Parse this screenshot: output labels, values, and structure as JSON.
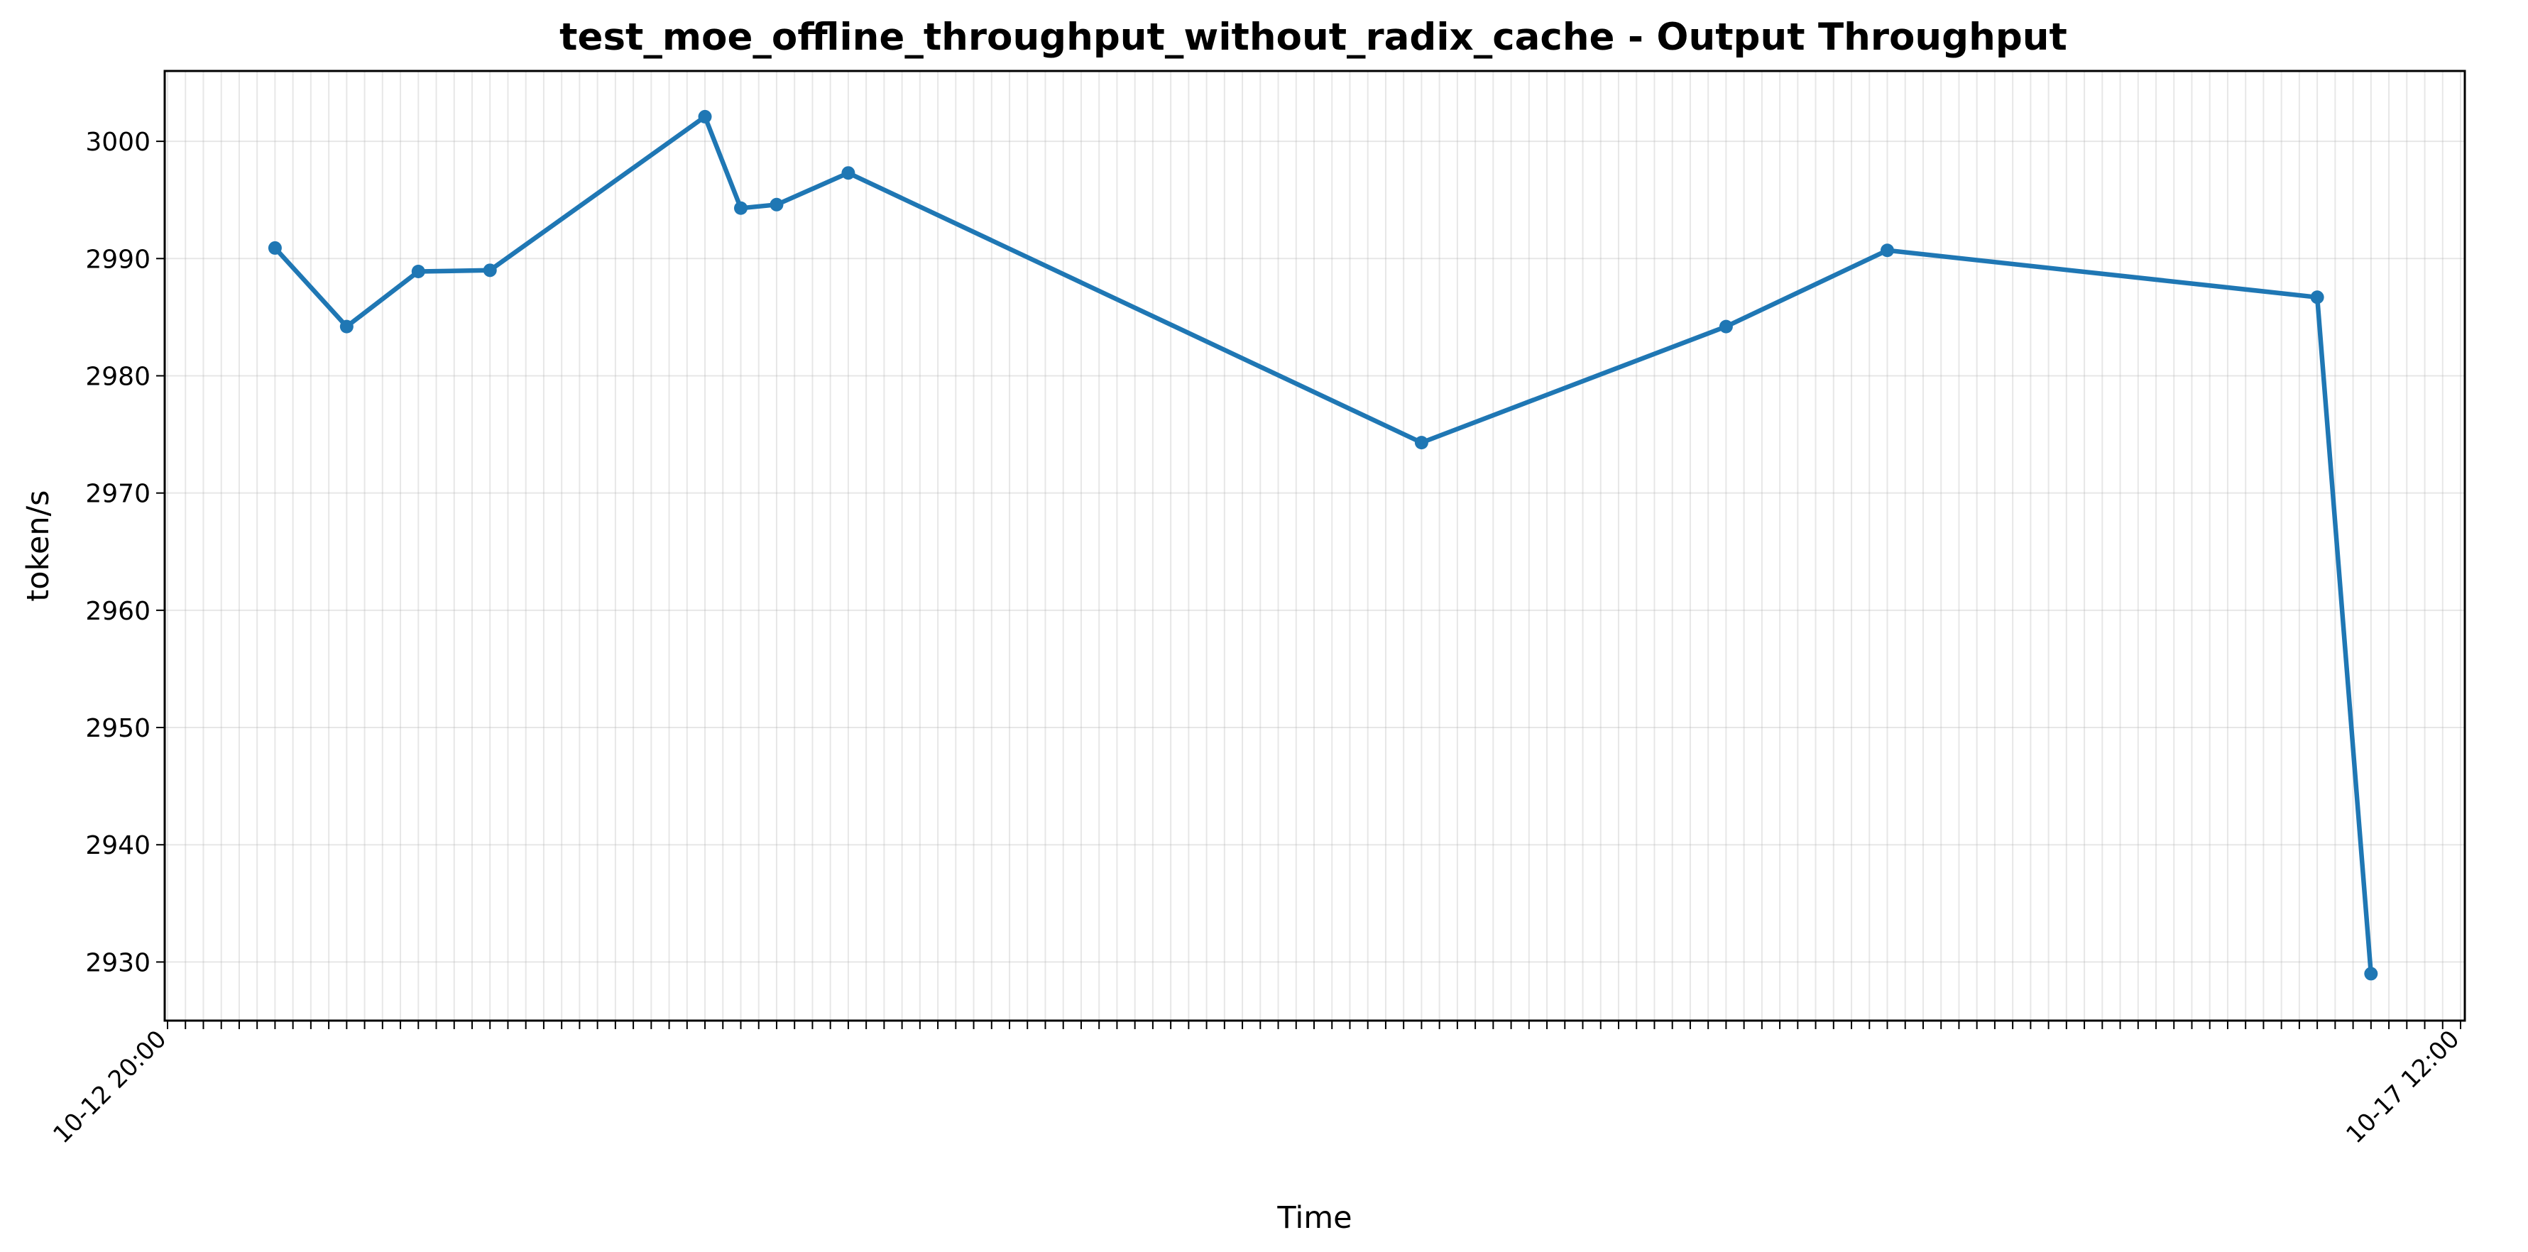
{
  "chart_data": {
    "type": "line",
    "title": "test_moe_offline_throughput_without_radix_cache - Output Throughput",
    "xlabel": "Time",
    "ylabel": "token/s",
    "ylim": [
      2925,
      3006
    ],
    "yticks": [
      2930,
      2940,
      2950,
      2960,
      2970,
      2980,
      2990,
      3000
    ],
    "grid": true,
    "color": "#1f77b4",
    "xtick_count": 129,
    "x_first_tick": "10-12 20:00",
    "x_last_tick": "10-17 12:00",
    "series": [
      {
        "points": [
          {
            "x": 6,
            "y": 2990.9
          },
          {
            "x": 10,
            "y": 2984.2
          },
          {
            "x": 14,
            "y": 2988.9
          },
          {
            "x": 18,
            "y": 2989.0
          },
          {
            "x": 30,
            "y": 3002.1
          },
          {
            "x": 32,
            "y": 2994.3
          },
          {
            "x": 34,
            "y": 2994.6
          },
          {
            "x": 38,
            "y": 2997.3
          },
          {
            "x": 70,
            "y": 2974.3
          },
          {
            "x": 87,
            "y": 2984.2
          },
          {
            "x": 96,
            "y": 2990.7
          },
          {
            "x": 120,
            "y": 2986.7
          },
          {
            "x": 123,
            "y": 2929.0
          }
        ]
      }
    ]
  }
}
